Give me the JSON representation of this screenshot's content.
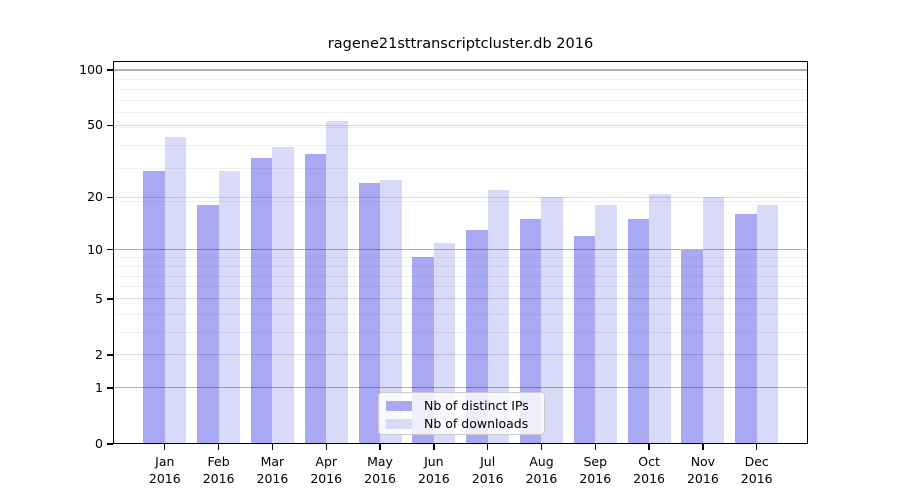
{
  "title": "ragene21sttranscriptcluster.db 2016",
  "colors": {
    "distinct_ips_bar": "#a9a9f3",
    "downloads_bar": "#d9d9f8",
    "axis": "#000000",
    "grid_major": "#b3b3b3",
    "grid_mid": "#dddddd",
    "grid_minor": "#f1f1f1",
    "legend_border": "#cccccc"
  },
  "chart_data": {
    "type": "bar",
    "title": "ragene21sttranscriptcluster.db 2016",
    "categories": [
      "Jan 2016",
      "Feb 2016",
      "Mar 2016",
      "Apr 2016",
      "May 2016",
      "Jun 2016",
      "Jul 2016",
      "Aug 2016",
      "Sep 2016",
      "Oct 2016",
      "Nov 2016",
      "Dec 2016"
    ],
    "series": [
      {
        "name": "Nb of distinct IPs",
        "color": "#a9a9f3",
        "values": [
          28,
          18,
          33,
          35,
          24,
          9,
          13,
          15,
          12,
          15,
          10,
          16
        ]
      },
      {
        "name": "Nb of downloads",
        "color": "#d9d9f8",
        "values": [
          43,
          28,
          38,
          53,
          25,
          11,
          22,
          20,
          18,
          21,
          20,
          18
        ]
      }
    ],
    "xlabel": "",
    "ylabel": "",
    "yscale": "log10(1+x)",
    "yticks": [
      0,
      1,
      2,
      5,
      10,
      20,
      50,
      100
    ],
    "major_decade_ticks": [
      1,
      10,
      100
    ],
    "y_minor_gridlines": [
      3,
      4,
      6,
      7,
      8,
      9,
      19,
      29,
      39,
      49,
      59,
      69,
      79,
      89
    ],
    "ylim": [
      0,
      112
    ],
    "grid": true,
    "legend_position": "lower-center"
  }
}
